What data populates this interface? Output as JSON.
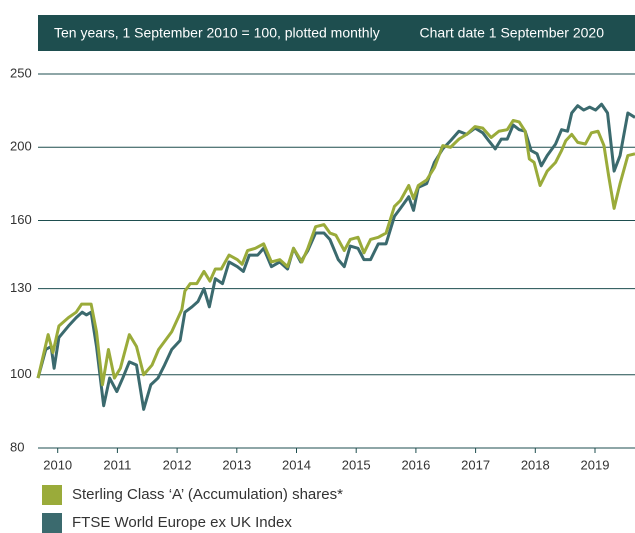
{
  "chart_data": {
    "type": "line",
    "title": "Ten years, 1 September 2010 = 100, plotted monthly",
    "subtitle": "Chart date 1 September 2020",
    "log_scale": true,
    "grid": true,
    "legend": "bottom",
    "xlim": [
      2010.67,
      2020.67
    ],
    "xticks": [
      {
        "value": 2011,
        "label": "2010"
      },
      {
        "value": 2012,
        "label": "2011"
      },
      {
        "value": 2013,
        "label": "2012"
      },
      {
        "value": 2014,
        "label": "2013"
      },
      {
        "value": 2015,
        "label": "2014"
      },
      {
        "value": 2016,
        "label": "2015"
      },
      {
        "value": 2017,
        "label": "2016"
      },
      {
        "value": 2018,
        "label": "2017"
      },
      {
        "value": 2019,
        "label": "2018"
      },
      {
        "value": 2020,
        "label": "2019"
      }
    ],
    "ylim": [
      80,
      250
    ],
    "yticks": [
      80,
      100,
      130,
      160,
      200,
      250
    ],
    "series": [
      {
        "name": "Sterling Class ‘A’ (Accumulation) shares*",
        "color": "#9aab3a",
        "x": [
          2010.67,
          2010.84,
          2010.92,
          2011.02,
          2011.18,
          2011.31,
          2011.4,
          2011.56,
          2011.65,
          2011.75,
          2011.85,
          2011.95,
          2012.05,
          2012.2,
          2012.32,
          2012.44,
          2012.58,
          2012.69,
          2012.91,
          2013.08,
          2013.13,
          2013.22,
          2013.33,
          2013.45,
          2013.55,
          2013.64,
          2013.74,
          2013.87,
          2014.01,
          2014.09,
          2014.18,
          2014.31,
          2014.45,
          2014.58,
          2014.72,
          2014.85,
          2014.95,
          2015.09,
          2015.19,
          2015.32,
          2015.46,
          2015.56,
          2015.66,
          2015.8,
          2015.9,
          2016.03,
          2016.13,
          2016.24,
          2016.37,
          2016.5,
          2016.64,
          2016.74,
          2016.88,
          2016.96,
          2017.04,
          2017.18,
          2017.31,
          2017.45,
          2017.58,
          2017.72,
          2017.85,
          2017.99,
          2018.12,
          2018.26,
          2018.39,
          2018.53,
          2018.63,
          2018.73,
          2018.83,
          2018.9,
          2018.98,
          2019.08,
          2019.2,
          2019.34,
          2019.44,
          2019.51,
          2019.61,
          2019.71,
          2019.84,
          2019.94,
          2020.05,
          2020.15,
          2020.23,
          2020.32,
          2020.42,
          2020.55,
          2020.67
        ],
        "values": [
          99,
          113,
          107,
          116,
          119,
          121,
          124,
          124,
          114,
          97,
          108,
          99,
          102,
          113,
          109,
          100,
          103,
          108,
          114,
          122,
          129,
          132,
          132,
          137,
          133,
          138,
          138,
          144,
          142,
          140,
          146,
          147,
          149,
          141,
          142,
          139,
          147,
          141,
          147,
          157,
          158,
          154,
          153,
          146,
          151,
          152,
          145,
          151,
          152,
          154,
          167,
          170,
          178,
          171,
          178,
          181,
          188,
          201,
          200,
          205,
          208,
          213,
          212,
          206,
          210,
          211,
          217,
          216,
          210,
          193,
          191,
          178,
          186,
          191,
          198,
          204,
          208,
          203,
          202,
          209,
          210,
          201,
          183,
          166,
          179,
          195,
          196
        ]
      },
      {
        "name": "FTSE World Europe ex UK Index",
        "color": "#3b6a6e",
        "x": [
          2010.67,
          2010.8,
          2010.89,
          2010.94,
          2011.02,
          2011.18,
          2011.31,
          2011.41,
          2011.48,
          2011.56,
          2011.65,
          2011.77,
          2011.87,
          2011.99,
          2012.09,
          2012.2,
          2012.32,
          2012.44,
          2012.56,
          2012.68,
          2012.79,
          2012.91,
          2013.05,
          2013.13,
          2013.25,
          2013.35,
          2013.45,
          2013.54,
          2013.64,
          2013.76,
          2013.87,
          2014.01,
          2014.11,
          2014.21,
          2014.35,
          2014.45,
          2014.58,
          2014.72,
          2014.85,
          2014.95,
          2015.07,
          2015.19,
          2015.32,
          2015.46,
          2015.56,
          2015.7,
          2015.8,
          2015.9,
          2016.03,
          2016.13,
          2016.24,
          2016.37,
          2016.5,
          2016.64,
          2016.74,
          2016.88,
          2016.96,
          2017.04,
          2017.18,
          2017.31,
          2017.45,
          2017.58,
          2017.72,
          2017.85,
          2017.99,
          2018.12,
          2018.22,
          2018.33,
          2018.43,
          2018.53,
          2018.63,
          2018.73,
          2018.83,
          2018.93,
          2019.03,
          2019.1,
          2019.2,
          2019.34,
          2019.44,
          2019.54,
          2019.61,
          2019.71,
          2019.81,
          2019.91,
          2020.01,
          2020.11,
          2020.21,
          2020.32,
          2020.42,
          2020.55,
          2020.67
        ],
        "values": [
          99,
          108,
          109,
          102,
          112,
          116,
          119,
          121,
          120,
          121,
          109,
          91,
          99,
          95,
          99,
          104,
          103,
          90,
          97,
          99,
          103,
          108,
          111,
          121,
          123,
          125,
          130,
          123,
          134,
          132,
          141,
          139,
          137,
          144,
          144,
          147,
          139,
          141,
          138,
          147,
          141,
          146,
          154,
          154,
          151,
          142,
          139,
          148,
          147,
          142,
          142,
          149,
          149,
          162,
          166,
          172,
          165,
          177,
          179,
          191,
          199,
          204,
          210,
          208,
          212,
          209,
          204,
          199,
          205,
          205,
          214,
          211,
          210,
          198,
          196,
          189,
          195,
          202,
          211,
          210,
          222,
          227,
          224,
          226,
          224,
          228,
          222,
          186,
          195,
          222,
          219
        ]
      }
    ]
  }
}
